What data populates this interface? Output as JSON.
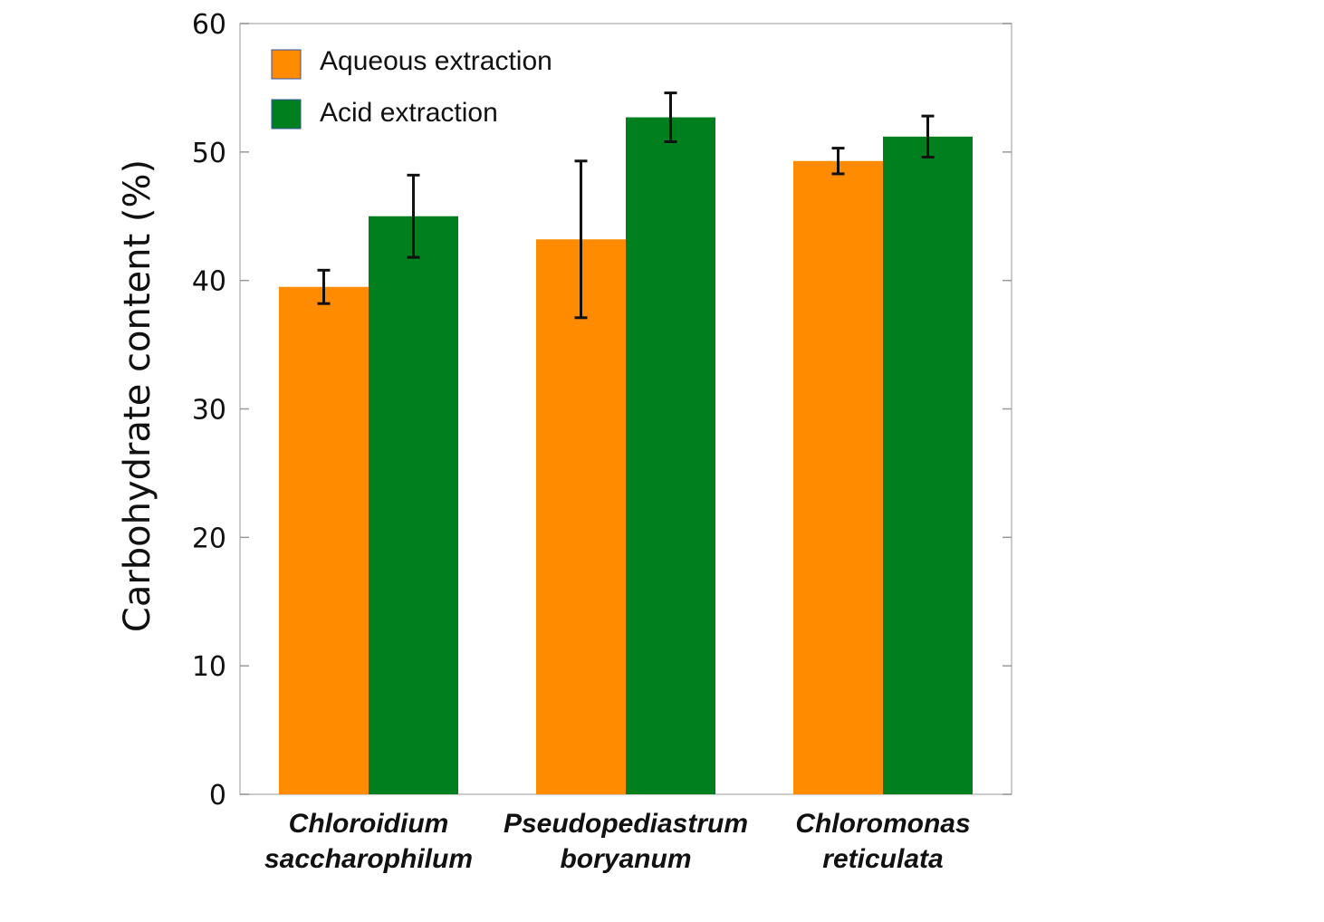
{
  "chart_data": {
    "type": "bar",
    "categories": [
      [
        "Chloroidium",
        "saccharophilum"
      ],
      [
        "Pseudopediastrum",
        "boryanum"
      ],
      [
        "Chloromonas",
        "reticulata"
      ]
    ],
    "series": [
      {
        "name": "Aqueous extraction",
        "color": "#FF8C00",
        "values": [
          39.5,
          43.2,
          49.3
        ],
        "error": [
          1.3,
          6.1,
          1.0
        ]
      },
      {
        "name": "Acid extraction",
        "color": "#007F1F",
        "values": [
          45.0,
          52.7,
          51.2
        ],
        "error": [
          3.2,
          1.9,
          1.6
        ]
      }
    ],
    "ylabel": "Carbohydrate content (%)",
    "xlabel": "",
    "ylim": [
      0,
      60
    ],
    "yticks": [
      0,
      10,
      20,
      30,
      40,
      50,
      60
    ],
    "grid": false,
    "legend_position": "top-left"
  }
}
